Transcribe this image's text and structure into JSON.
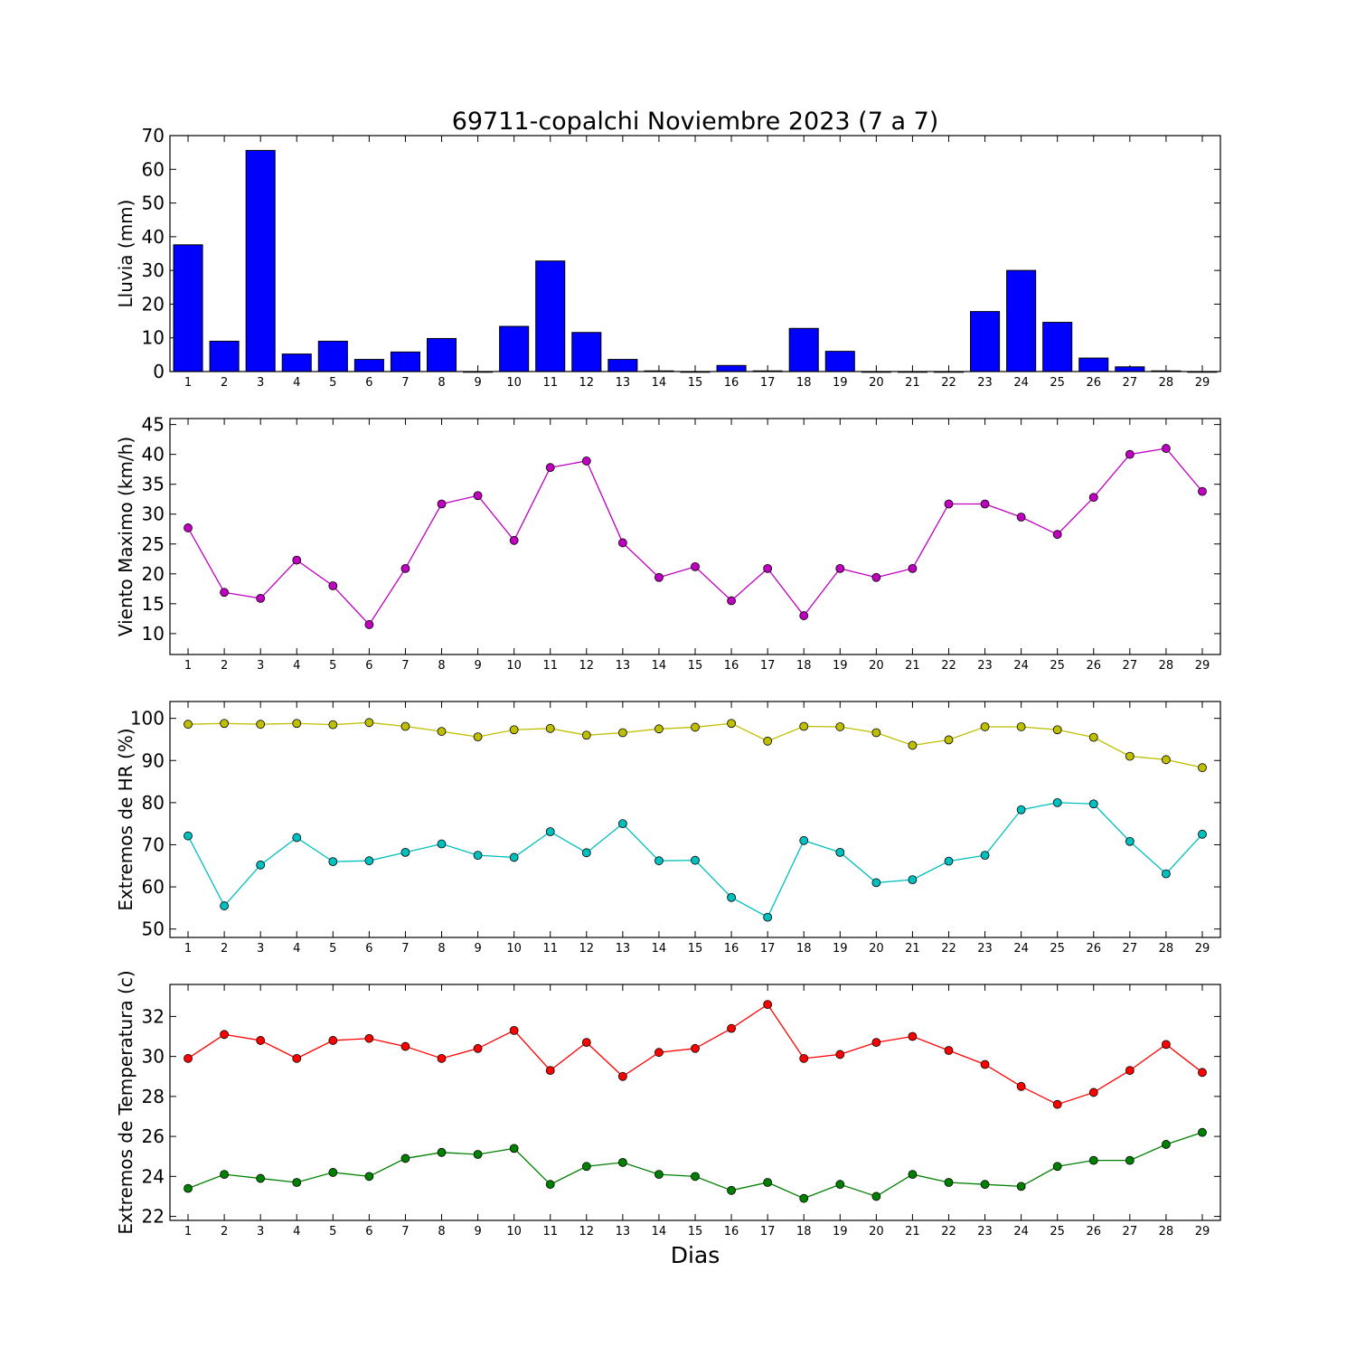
{
  "figure": {
    "title": "69711-copalchi Noviembre 2023  (7 a 7)",
    "xlabel": "Dias"
  },
  "chart_data": [
    {
      "type": "bar",
      "ylabel": "Lluvia (mm)",
      "ylim": [
        0,
        70
      ],
      "yticks": [
        0,
        10,
        20,
        30,
        40,
        50,
        60,
        70
      ],
      "categories": [
        1,
        2,
        3,
        4,
        5,
        6,
        7,
        8,
        9,
        10,
        11,
        12,
        13,
        14,
        15,
        16,
        17,
        18,
        19,
        20,
        21,
        22,
        23,
        24,
        25,
        26,
        27,
        28,
        29
      ],
      "series": [
        {
          "color": "#0000ff",
          "values": [
            37.6,
            9.0,
            65.6,
            5.2,
            9.0,
            3.6,
            5.8,
            9.8,
            0.0,
            13.4,
            32.8,
            11.6,
            3.6,
            0.2,
            0.0,
            1.8,
            0.2,
            12.8,
            6.0,
            0.0,
            0.0,
            0.0,
            17.8,
            30.0,
            14.6,
            4.0,
            1.4,
            0.2,
            0.0
          ]
        }
      ],
      "grid": false
    },
    {
      "type": "line",
      "ylabel": "Viento Maximo (km/h)",
      "ylim": [
        6.5,
        46
      ],
      "yticks": [
        10,
        15,
        20,
        25,
        30,
        35,
        40,
        45
      ],
      "x": [
        1,
        2,
        3,
        4,
        5,
        6,
        7,
        8,
        9,
        10,
        11,
        12,
        13,
        14,
        15,
        16,
        17,
        18,
        19,
        20,
        21,
        22,
        23,
        24,
        25,
        26,
        27,
        28,
        29
      ],
      "series": [
        {
          "color": "#bf00bf",
          "values": [
            27.7,
            16.9,
            15.9,
            22.3,
            18.0,
            11.5,
            20.9,
            31.7,
            33.1,
            25.6,
            37.8,
            38.9,
            25.2,
            19.4,
            21.2,
            15.5,
            20.9,
            13.0,
            20.9,
            19.4,
            20.9,
            31.7,
            31.7,
            29.5,
            26.6,
            32.8,
            40.0,
            41.0,
            33.8
          ]
        }
      ],
      "grid": false
    },
    {
      "type": "line",
      "ylabel": "Extremos de HR (%)",
      "ylim": [
        48,
        104
      ],
      "yticks": [
        50,
        60,
        70,
        80,
        90,
        100
      ],
      "x": [
        1,
        2,
        3,
        4,
        5,
        6,
        7,
        8,
        9,
        10,
        11,
        12,
        13,
        14,
        15,
        16,
        17,
        18,
        19,
        20,
        21,
        22,
        23,
        24,
        25,
        26,
        27,
        28,
        29
      ],
      "series": [
        {
          "color": "#bfbf00",
          "values": [
            98.6,
            98.8,
            98.6,
            98.8,
            98.5,
            99.0,
            98.1,
            96.9,
            95.6,
            97.3,
            97.6,
            96.0,
            96.6,
            97.5,
            97.9,
            98.8,
            94.6,
            98.1,
            98.0,
            96.6,
            93.6,
            94.9,
            98.0,
            98.0,
            97.3,
            95.5,
            91.0,
            90.2,
            88.3
          ]
        },
        {
          "color": "#00bfbf",
          "values": [
            72.1,
            55.5,
            65.2,
            71.7,
            66.0,
            66.2,
            68.2,
            70.2,
            67.5,
            67.0,
            73.1,
            68.1,
            75.0,
            66.2,
            66.3,
            57.5,
            52.8,
            71.0,
            68.2,
            61.0,
            61.7,
            66.1,
            67.5,
            78.3,
            80.0,
            79.7,
            70.8,
            63.1,
            72.5
          ]
        }
      ],
      "grid": false
    },
    {
      "type": "line",
      "ylabel": "Extremos de Temperatura (c)",
      "ylim": [
        21.8,
        33.6
      ],
      "yticks": [
        22,
        24,
        26,
        28,
        30,
        32
      ],
      "x": [
        1,
        2,
        3,
        4,
        5,
        6,
        7,
        8,
        9,
        10,
        11,
        12,
        13,
        14,
        15,
        16,
        17,
        18,
        19,
        20,
        21,
        22,
        23,
        24,
        25,
        26,
        27,
        28,
        29
      ],
      "series": [
        {
          "color": "#ff0000",
          "values": [
            29.9,
            31.1,
            30.8,
            29.9,
            30.8,
            30.9,
            30.5,
            29.9,
            30.4,
            31.3,
            29.3,
            30.7,
            29.0,
            30.2,
            30.4,
            31.4,
            32.6,
            29.9,
            30.1,
            30.7,
            31.0,
            30.3,
            29.6,
            28.5,
            27.6,
            28.2,
            29.3,
            30.6,
            29.2
          ]
        },
        {
          "color": "#008000",
          "values": [
            23.4,
            24.1,
            23.9,
            23.7,
            24.2,
            24.0,
            24.9,
            25.2,
            25.1,
            25.4,
            23.6,
            24.5,
            24.7,
            24.1,
            24.0,
            23.3,
            23.7,
            22.9,
            23.6,
            23.0,
            24.1,
            23.7,
            23.6,
            23.5,
            24.5,
            24.8,
            24.8,
            25.6,
            26.2
          ]
        }
      ],
      "grid": false
    }
  ]
}
